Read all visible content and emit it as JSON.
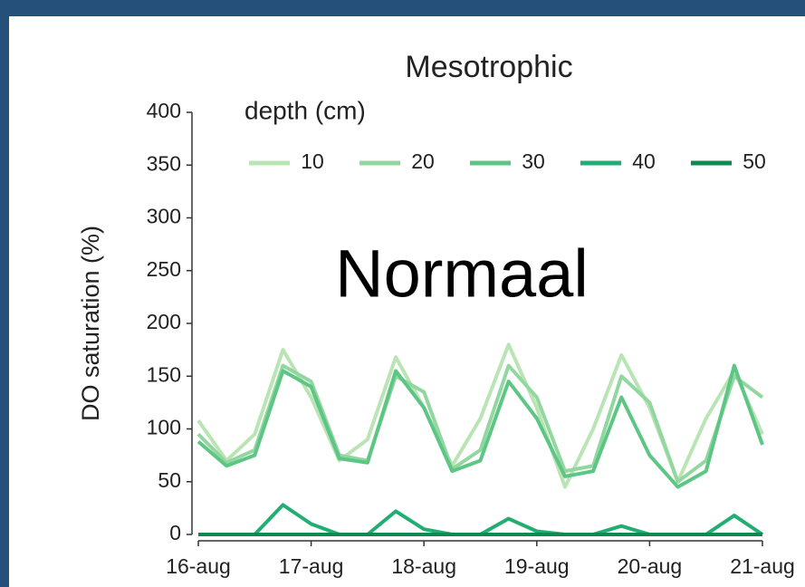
{
  "chart_data": {
    "type": "line",
    "title": "Mesotrophic",
    "ylabel": "DO saturation (%)",
    "legend_title": "depth (cm)",
    "annotation": "Normaal",
    "x": [
      0,
      0.25,
      0.5,
      0.75,
      1,
      1.25,
      1.5,
      1.75,
      2,
      2.25,
      2.5,
      2.75,
      3,
      3.25,
      3.5,
      3.75,
      4,
      4.25,
      4.5,
      4.75,
      5
    ],
    "series": [
      {
        "name": "10",
        "color": "#b9e4b4",
        "values": [
          108,
          70,
          95,
          175,
          130,
          70,
          90,
          168,
          120,
          65,
          110,
          180,
          120,
          45,
          100,
          170,
          120,
          50,
          110,
          155,
          95
        ]
      },
      {
        "name": "20",
        "color": "#93d7a0",
        "values": [
          95,
          68,
          80,
          160,
          145,
          75,
          70,
          150,
          135,
          62,
          80,
          160,
          130,
          60,
          65,
          150,
          125,
          50,
          70,
          150,
          130
        ]
      },
      {
        "name": "30",
        "color": "#5ec685",
        "values": [
          88,
          65,
          75,
          155,
          140,
          72,
          68,
          155,
          120,
          60,
          70,
          145,
          110,
          55,
          60,
          130,
          75,
          45,
          60,
          160,
          85
        ]
      },
      {
        "name": "40",
        "color": "#22ad72",
        "values": [
          0,
          0,
          0,
          28,
          10,
          0,
          0,
          22,
          5,
          0,
          0,
          15,
          3,
          0,
          0,
          8,
          0,
          0,
          0,
          18,
          0
        ]
      },
      {
        "name": "50",
        "color": "#0c8a4f",
        "values": [
          0,
          0,
          0,
          0,
          0,
          0,
          0,
          0,
          0,
          0,
          0,
          0,
          0,
          0,
          0,
          0,
          0,
          0,
          0,
          0,
          0
        ]
      }
    ],
    "xlim": [
      0,
      5
    ],
    "xticks": [
      {
        "value": 0,
        "label": "16-aug"
      },
      {
        "value": 1,
        "label": "17-aug"
      },
      {
        "value": 2,
        "label": "18-aug"
      },
      {
        "value": 3,
        "label": "19-aug"
      },
      {
        "value": 4,
        "label": "20-aug"
      },
      {
        "value": 5,
        "label": "21-aug"
      }
    ],
    "ylim": [
      0,
      400
    ],
    "yticks": [
      0,
      50,
      100,
      150,
      200,
      250,
      300,
      350,
      400
    ],
    "legend": "top"
  }
}
